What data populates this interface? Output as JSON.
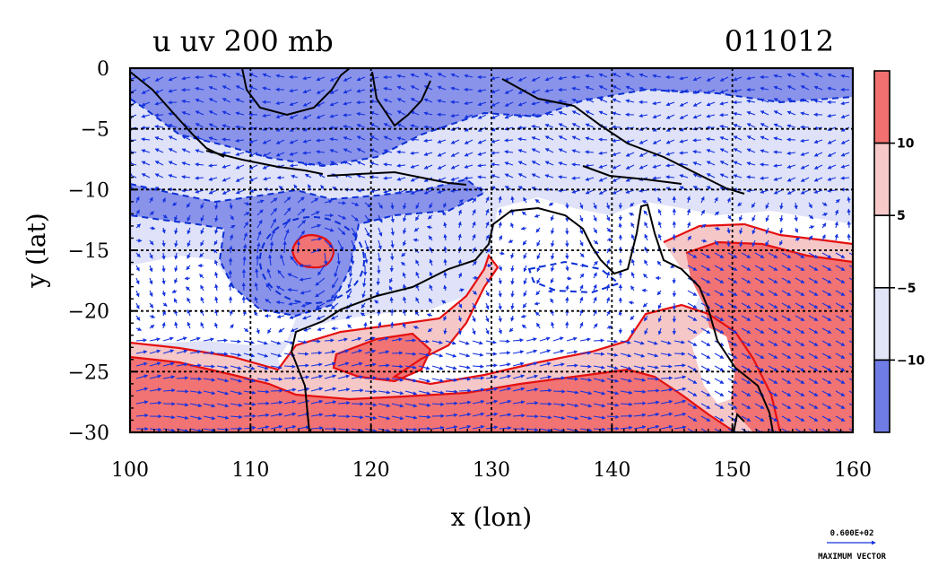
{
  "chart_data": {
    "type": "heatmap",
    "title": "u uv 200 mb",
    "date_label": "011012",
    "xlabel": "x (lon)",
    "ylabel": "y (lat)",
    "xlim": [
      100,
      160
    ],
    "ylim": [
      -30,
      0
    ],
    "x_ticks": [
      100,
      110,
      120,
      130,
      140,
      150,
      160
    ],
    "y_ticks": [
      0,
      -5,
      -10,
      -15,
      -20,
      -25,
      -30
    ],
    "x_tick_labels": [
      "100",
      "110",
      "120",
      "130",
      "140",
      "150",
      "160"
    ],
    "y_tick_labels": [
      "0",
      "−5",
      "−10",
      "−15",
      "−20",
      "−25",
      "−30"
    ],
    "grid": true,
    "colorbar": {
      "placement": "right",
      "levels": [
        {
          "label": "10",
          "value": 10
        },
        {
          "label": "5",
          "value": 5
        },
        {
          "label": "−5",
          "value": -5
        },
        {
          "label": "−10",
          "value": -10
        }
      ],
      "colors": [
        "#6f7ce6",
        "#e2e4f8",
        "#ffffff",
        "#f7c9c9",
        "#f27070"
      ]
    },
    "vector_reference": {
      "value_label": "0.600E+02",
      "caption": "MAXIMUM VECTOR"
    },
    "colors": {
      "strong_negative": "#7d88e8",
      "weak_negative": "#dfe2f8",
      "neutral": "#ffffff",
      "weak_positive": "#f6c7c7",
      "strong_positive": "#f07575",
      "contour_positive": "#e51010",
      "contour_negative": "#0b2fd4",
      "vectors": "#1533e0",
      "coast": "#000000"
    }
  }
}
